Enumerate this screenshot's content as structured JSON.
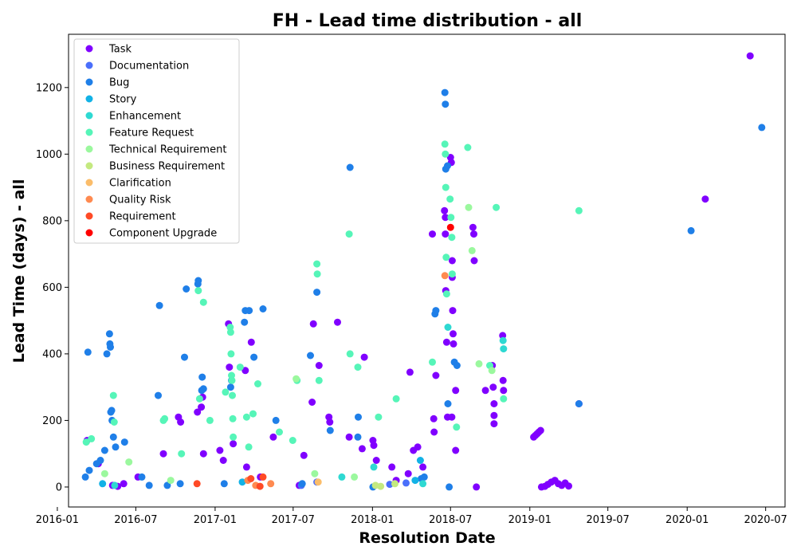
{
  "chart_data": {
    "type": "scatter",
    "title": "FH - Lead time distribution - all",
    "xlabel": "Resolution Date",
    "ylabel": "Lead Time (days) - all",
    "xlim": [
      "2016-01-27",
      "2020-08-15"
    ],
    "ylim": [
      -60,
      1360
    ],
    "x_ticks": [
      "2016-01",
      "2016-07",
      "2017-01",
      "2017-07",
      "2018-01",
      "2018-07",
      "2019-01",
      "2019-07",
      "2020-01",
      "2020-07"
    ],
    "y_ticks": [
      0,
      200,
      400,
      600,
      800,
      1000,
      1200
    ],
    "grid": false,
    "legend_position": "top-left",
    "series": [
      {
        "name": "Task",
        "color": "#8000ff",
        "points": [
          [
            "2016-03-10",
            140
          ],
          [
            "2016-04-05",
            70
          ],
          [
            "2016-05-08",
            5
          ],
          [
            "2016-05-20",
            2
          ],
          [
            "2016-06-03",
            10
          ],
          [
            "2016-07-06",
            30
          ],
          [
            "2016-09-03",
            100
          ],
          [
            "2016-10-08",
            210
          ],
          [
            "2016-10-13",
            195
          ],
          [
            "2016-11-21",
            225
          ],
          [
            "2016-11-30",
            240
          ],
          [
            "2016-12-03",
            270
          ],
          [
            "2016-12-05",
            100
          ],
          [
            "2017-01-12",
            110
          ],
          [
            "2017-01-20",
            80
          ],
          [
            "2017-02-01",
            490
          ],
          [
            "2017-02-03",
            360
          ],
          [
            "2017-02-12",
            130
          ],
          [
            "2017-03-12",
            350
          ],
          [
            "2017-03-15",
            60
          ],
          [
            "2017-03-26",
            435
          ],
          [
            "2017-04-16",
            30
          ],
          [
            "2017-05-16",
            150
          ],
          [
            "2017-07-15",
            5
          ],
          [
            "2017-07-26",
            95
          ],
          [
            "2017-08-14",
            255
          ],
          [
            "2017-08-17",
            490
          ],
          [
            "2017-08-30",
            365
          ],
          [
            "2017-09-22",
            210
          ],
          [
            "2017-09-24",
            195
          ],
          [
            "2017-10-12",
            495
          ],
          [
            "2017-11-08",
            150
          ],
          [
            "2017-12-08",
            115
          ],
          [
            "2017-12-13",
            390
          ],
          [
            "2018-01-02",
            140
          ],
          [
            "2018-01-04",
            125
          ],
          [
            "2018-01-10",
            80
          ],
          [
            "2018-02-15",
            60
          ],
          [
            "2018-02-25",
            20
          ],
          [
            "2018-03-25",
            40
          ],
          [
            "2018-03-29",
            345
          ],
          [
            "2018-04-06",
            110
          ],
          [
            "2018-04-16",
            120
          ],
          [
            "2018-04-28",
            60
          ],
          [
            "2018-05-20",
            760
          ],
          [
            "2018-05-23",
            205
          ],
          [
            "2018-05-24",
            165
          ],
          [
            "2018-05-28",
            335
          ],
          [
            "2018-06-17",
            830
          ],
          [
            "2018-06-19",
            810
          ],
          [
            "2018-06-19",
            760
          ],
          [
            "2018-06-20",
            590
          ],
          [
            "2018-06-22",
            435
          ],
          [
            "2018-06-24",
            210
          ],
          [
            "2018-07-01",
            990
          ],
          [
            "2018-07-03",
            975
          ],
          [
            "2018-07-05",
            680
          ],
          [
            "2018-07-05",
            630
          ],
          [
            "2018-07-06",
            530
          ],
          [
            "2018-07-07",
            460
          ],
          [
            "2018-07-08",
            430
          ],
          [
            "2018-07-04",
            210
          ],
          [
            "2018-07-13",
            290
          ],
          [
            "2018-07-13",
            110
          ],
          [
            "2018-08-22",
            780
          ],
          [
            "2018-08-24",
            760
          ],
          [
            "2018-08-25",
            680
          ],
          [
            "2018-08-30",
            0
          ],
          [
            "2018-09-20",
            290
          ],
          [
            "2018-10-06",
            365
          ],
          [
            "2018-10-08",
            300
          ],
          [
            "2018-10-10",
            250
          ],
          [
            "2018-10-10",
            215
          ],
          [
            "2018-10-10",
            190
          ],
          [
            "2018-10-30",
            455
          ],
          [
            "2018-10-31",
            320
          ],
          [
            "2018-11-01",
            290
          ],
          [
            "2019-01-10",
            150
          ],
          [
            "2019-01-14",
            155
          ],
          [
            "2019-01-18",
            160
          ],
          [
            "2019-01-22",
            165
          ],
          [
            "2019-01-26",
            170
          ],
          [
            "2019-01-28",
            0
          ],
          [
            "2019-02-05",
            2
          ],
          [
            "2019-02-12",
            8
          ],
          [
            "2019-02-20",
            15
          ],
          [
            "2019-02-28",
            20
          ],
          [
            "2019-03-08",
            10
          ],
          [
            "2019-03-16",
            5
          ],
          [
            "2019-03-24",
            12
          ],
          [
            "2019-04-01",
            3
          ],
          [
            "2019-04-25",
            250
          ],
          [
            "2020-02-12",
            865
          ],
          [
            "2020-05-26",
            1295
          ]
        ]
      },
      {
        "name": "Documentation",
        "color": "#4a6ffb",
        "points": [
          [
            "2017-07-20",
            5
          ],
          [
            "2017-08-25",
            15
          ],
          [
            "2018-02-10",
            8
          ],
          [
            "2018-03-20",
            12
          ]
        ]
      },
      {
        "name": "Bug",
        "color": "#1f7fe8",
        "points": [
          [
            "2016-03-06",
            30
          ],
          [
            "2016-03-12",
            405
          ],
          [
            "2016-03-15",
            50
          ],
          [
            "2016-04-01",
            70
          ],
          [
            "2016-04-10",
            80
          ],
          [
            "2016-04-20",
            110
          ],
          [
            "2016-04-25",
            400
          ],
          [
            "2016-05-01",
            460
          ],
          [
            "2016-05-02",
            430
          ],
          [
            "2016-05-03",
            420
          ],
          [
            "2016-05-04",
            225
          ],
          [
            "2016-05-06",
            230
          ],
          [
            "2016-05-07",
            200
          ],
          [
            "2016-05-10",
            150
          ],
          [
            "2016-05-15",
            120
          ],
          [
            "2016-06-05",
            135
          ],
          [
            "2016-07-15",
            30
          ],
          [
            "2016-08-01",
            5
          ],
          [
            "2016-08-25",
            545
          ],
          [
            "2016-08-22",
            275
          ],
          [
            "2016-09-12",
            5
          ],
          [
            "2016-10-12",
            10
          ],
          [
            "2016-10-22",
            390
          ],
          [
            "2016-10-26",
            595
          ],
          [
            "2016-11-22",
            610
          ],
          [
            "2016-11-23",
            620
          ],
          [
            "2016-12-01",
            290
          ],
          [
            "2016-12-05",
            295
          ],
          [
            "2016-12-02",
            330
          ],
          [
            "2017-01-22",
            10
          ],
          [
            "2017-02-06",
            300
          ],
          [
            "2017-02-08",
            320
          ],
          [
            "2017-03-10",
            495
          ],
          [
            "2017-03-12",
            530
          ],
          [
            "2017-03-21",
            530
          ],
          [
            "2017-04-01",
            390
          ],
          [
            "2017-04-22",
            535
          ],
          [
            "2017-05-22",
            200
          ],
          [
            "2017-07-22",
            10
          ],
          [
            "2017-08-10",
            395
          ],
          [
            "2017-08-25",
            585
          ],
          [
            "2017-09-25",
            170
          ],
          [
            "2017-11-10",
            960
          ],
          [
            "2017-11-28",
            150
          ],
          [
            "2017-11-29",
            210
          ],
          [
            "2018-01-02",
            0
          ],
          [
            "2018-04-24",
            25
          ],
          [
            "2018-05-01",
            30
          ],
          [
            "2018-05-26",
            520
          ],
          [
            "2018-05-28",
            530
          ],
          [
            "2018-06-18",
            1185
          ],
          [
            "2018-06-19",
            1150
          ],
          [
            "2018-06-20",
            955
          ],
          [
            "2018-06-24",
            965
          ],
          [
            "2018-06-25",
            250
          ],
          [
            "2018-06-28",
            0
          ],
          [
            "2018-07-10",
            375
          ],
          [
            "2018-07-16",
            365
          ],
          [
            "2019-04-25",
            250
          ],
          [
            "2020-01-10",
            770
          ],
          [
            "2020-06-22",
            1080
          ]
        ]
      },
      {
        "name": "Story",
        "color": "#12b2e6",
        "points": [
          [
            "2016-04-15",
            10
          ],
          [
            "2017-03-05",
            15
          ],
          [
            "2018-04-10",
            20
          ],
          [
            "2018-04-22",
            80
          ]
        ]
      },
      {
        "name": "Enhancement",
        "color": "#2ed9d2",
        "points": [
          [
            "2016-05-13",
            5
          ],
          [
            "2017-10-22",
            30
          ],
          [
            "2018-01-04",
            60
          ],
          [
            "2018-04-28",
            10
          ],
          [
            "2018-06-25",
            480
          ],
          [
            "2018-10-31",
            440
          ],
          [
            "2018-11-01",
            415
          ]
        ]
      },
      {
        "name": "Feature Request",
        "color": "#56f5b8",
        "points": [
          [
            "2016-03-08",
            135
          ],
          [
            "2016-03-20",
            145
          ],
          [
            "2016-05-10",
            275
          ],
          [
            "2016-05-12",
            195
          ],
          [
            "2016-09-03",
            200
          ],
          [
            "2016-09-06",
            205
          ],
          [
            "2016-10-15",
            100
          ],
          [
            "2016-11-23",
            590
          ],
          [
            "2016-11-26",
            265
          ],
          [
            "2016-12-05",
            555
          ],
          [
            "2016-12-20",
            200
          ],
          [
            "2017-01-25",
            285
          ],
          [
            "2017-02-05",
            480
          ],
          [
            "2017-02-06",
            465
          ],
          [
            "2017-02-07",
            400
          ],
          [
            "2017-02-08",
            335
          ],
          [
            "2017-02-09",
            320
          ],
          [
            "2017-02-10",
            275
          ],
          [
            "2017-02-11",
            205
          ],
          [
            "2017-02-12",
            150
          ],
          [
            "2017-02-28",
            360
          ],
          [
            "2017-03-15",
            210
          ],
          [
            "2017-03-20",
            120
          ],
          [
            "2017-03-30",
            220
          ],
          [
            "2017-04-10",
            310
          ],
          [
            "2017-05-30",
            165
          ],
          [
            "2017-06-30",
            140
          ],
          [
            "2017-07-10",
            320
          ],
          [
            "2017-08-25",
            670
          ],
          [
            "2017-08-26",
            640
          ],
          [
            "2017-08-30",
            320
          ],
          [
            "2017-11-08",
            760
          ],
          [
            "2017-11-10",
            400
          ],
          [
            "2017-11-28",
            360
          ],
          [
            "2018-01-15",
            210
          ],
          [
            "2018-02-25",
            265
          ],
          [
            "2018-05-20",
            375
          ],
          [
            "2018-06-18",
            1030
          ],
          [
            "2018-06-19",
            1000
          ],
          [
            "2018-06-20",
            900
          ],
          [
            "2018-06-21",
            690
          ],
          [
            "2018-06-22",
            580
          ],
          [
            "2018-06-30",
            865
          ],
          [
            "2018-07-02",
            810
          ],
          [
            "2018-07-04",
            750
          ],
          [
            "2018-07-05",
            640
          ],
          [
            "2018-07-15",
            180
          ],
          [
            "2018-08-10",
            1020
          ],
          [
            "2018-09-30",
            365
          ],
          [
            "2018-10-15",
            840
          ],
          [
            "2018-11-01",
            265
          ],
          [
            "2019-04-25",
            830
          ]
        ]
      },
      {
        "name": "Technical Requirement",
        "color": "#9bf89e",
        "points": [
          [
            "2016-04-20",
            40
          ],
          [
            "2016-06-15",
            75
          ],
          [
            "2016-09-20",
            20
          ],
          [
            "2017-07-08",
            325
          ],
          [
            "2017-08-20",
            40
          ],
          [
            "2017-11-20",
            30
          ],
          [
            "2018-08-12",
            840
          ],
          [
            "2018-08-20",
            710
          ],
          [
            "2018-09-05",
            370
          ],
          [
            "2018-10-05",
            350
          ]
        ]
      },
      {
        "name": "Business Requirement",
        "color": "#c4e980",
        "points": [
          [
            "2018-01-08",
            5
          ],
          [
            "2018-01-20",
            2
          ],
          [
            "2018-02-22",
            10
          ]
        ]
      },
      {
        "name": "Clarification",
        "color": "#fbbd6a",
        "points": [
          [
            "2017-08-28",
            15
          ]
        ]
      },
      {
        "name": "Quality Risk",
        "color": "#ff8a50",
        "points": [
          [
            "2017-03-18",
            20
          ],
          [
            "2017-04-05",
            5
          ],
          [
            "2017-05-10",
            10
          ],
          [
            "2018-06-18",
            635
          ]
        ]
      },
      {
        "name": "Requirement",
        "color": "#ff4a26",
        "points": [
          [
            "2016-11-20",
            10
          ],
          [
            "2017-03-25",
            25
          ],
          [
            "2017-04-22",
            30
          ],
          [
            "2017-04-15",
            2
          ]
        ]
      },
      {
        "name": "Component Upgrade",
        "color": "#ff0000",
        "points": [
          [
            "2018-07-01",
            780
          ]
        ]
      }
    ]
  }
}
